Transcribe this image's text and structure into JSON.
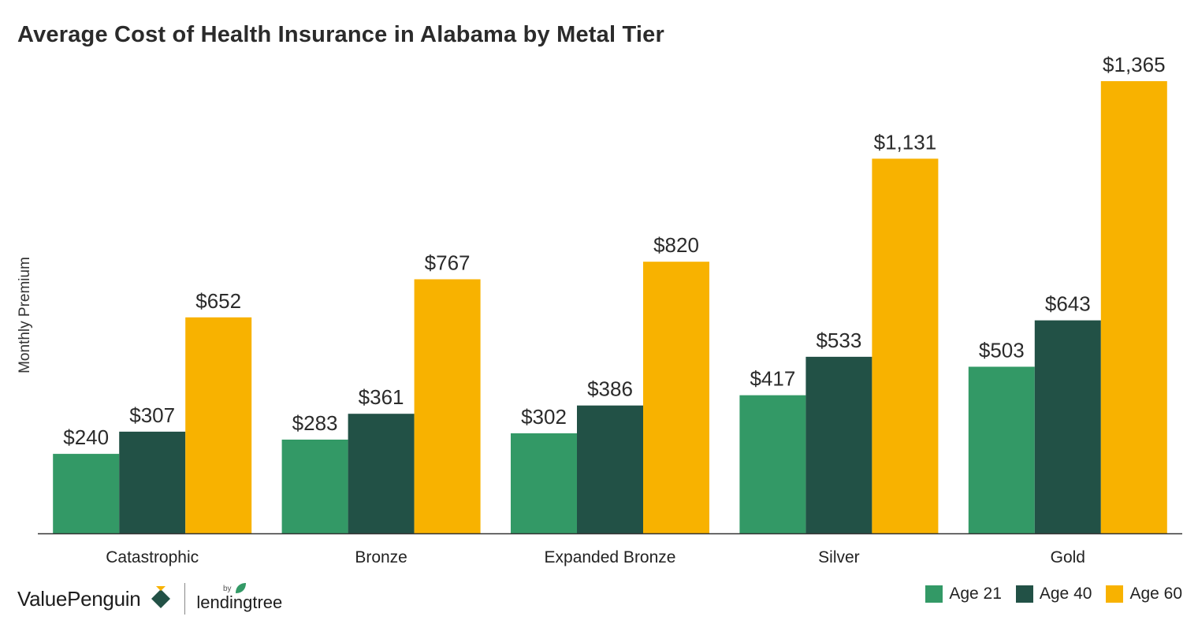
{
  "chart_data": {
    "type": "bar",
    "title": "Average Cost of Health Insurance in Alabama by Metal Tier",
    "ylabel": "Monthly Premium",
    "xlabel": "",
    "categories": [
      "Catastrophic",
      "Bronze",
      "Expanded Bronze",
      "Silver",
      "Gold"
    ],
    "series": [
      {
        "name": "Age 21",
        "color": "#339966",
        "values": [
          240,
          283,
          302,
          417,
          503
        ],
        "labels": [
          "$240",
          "$283",
          "$302",
          "$417",
          "$503"
        ]
      },
      {
        "name": "Age 40",
        "color": "#225146",
        "values": [
          307,
          361,
          386,
          533,
          643
        ],
        "labels": [
          "$307",
          "$361",
          "$386",
          "$533",
          "$643"
        ]
      },
      {
        "name": "Age 60",
        "color": "#F8B200",
        "values": [
          652,
          767,
          820,
          1131,
          1365
        ],
        "labels": [
          "$652",
          "$767",
          "$820",
          "$1,131",
          "$1,365"
        ]
      }
    ],
    "ylim": [
      0,
      1400
    ],
    "grid": false,
    "legend": "bottom-right"
  },
  "branding": {
    "logo_text": "ValuePenguin",
    "by_text": "by",
    "partner_text": "lendingtree",
    "logo_colors": [
      "#F8B200",
      "#225146",
      "#339966"
    ]
  }
}
